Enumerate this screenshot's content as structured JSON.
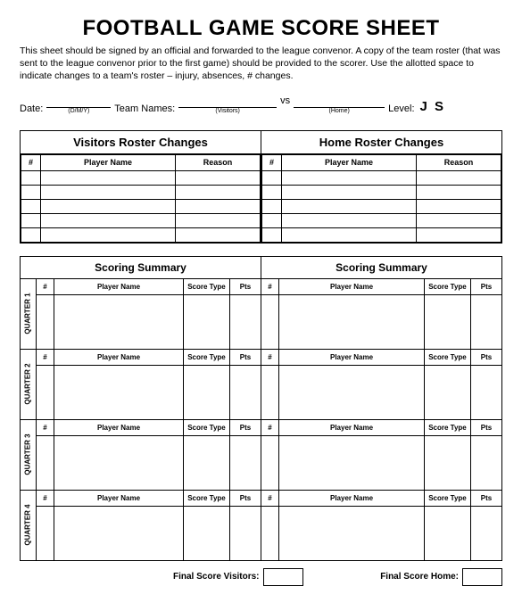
{
  "title": "FOOTBALL GAME SCORE SHEET",
  "intro": "This sheet should be signed by an official and forwarded to the league convenor. A copy of the team roster (that was sent to the league convenor prior to the first game) should be provided to the scorer. Use the allotted space to indicate changes to a team's roster – injury, absences, # changes.",
  "meta": {
    "date_label": "Date:",
    "date_sub": "(D/M/Y)",
    "team_label": "Team Names:",
    "visitors_sub": "(Visitors)",
    "vs": "vs",
    "home_sub": "(Home)",
    "level_label": "Level:",
    "level_values": "J S"
  },
  "roster": {
    "visitors_title": "Visitors Roster Changes",
    "home_title": "Home Roster Changes",
    "col_num": "#",
    "col_name": "Player Name",
    "col_reason": "Reason",
    "row_count": 5
  },
  "scoring": {
    "title": "Scoring Summary",
    "col_num": "#",
    "col_name": "Player Name",
    "col_score": "Score Type",
    "col_pts": "Pts",
    "quarters": [
      "QUARTER 1",
      "QUARTER 2",
      "QUARTER 3",
      "QUARTER 4"
    ]
  },
  "final": {
    "visitors": "Final Score Visitors:",
    "home": "Final Score Home:"
  }
}
